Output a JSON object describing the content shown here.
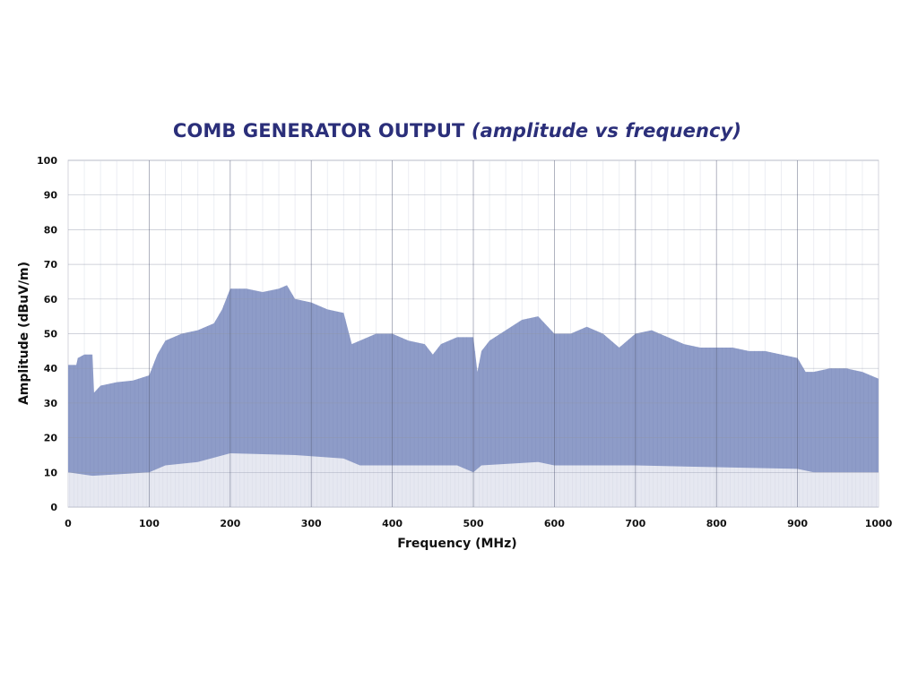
{
  "chart_data": {
    "type": "area",
    "title": "COMB GENERATOR OUTPUT",
    "subtitle": "(amplitude vs frequency)",
    "xlabel": "Frequency (MHz)",
    "ylabel": "Amplitude (dBuV/m)",
    "xlim": [
      0,
      1000
    ],
    "ylim": [
      0,
      100
    ],
    "x_ticks": [
      "0",
      "100",
      "200",
      "300",
      "400",
      "500",
      "600",
      "700",
      "800",
      "900",
      "1000"
    ],
    "y_ticks": [
      "0",
      "10",
      "20",
      "30",
      "40",
      "50",
      "60",
      "70",
      "80",
      "90",
      "100"
    ],
    "grid": true,
    "legend": "none",
    "series": [
      {
        "color": "#8e9cc8",
        "x": [
          0,
          10,
          12,
          20,
          30,
          32,
          40,
          60,
          80,
          100,
          110,
          120,
          140,
          160,
          180,
          190,
          200,
          220,
          240,
          260,
          270,
          280,
          300,
          320,
          340,
          350,
          360,
          380,
          400,
          420,
          440,
          450,
          460,
          480,
          500,
          505,
          510,
          520,
          540,
          560,
          580,
          600,
          620,
          640,
          660,
          680,
          690,
          700,
          720,
          740,
          760,
          780,
          800,
          820,
          840,
          860,
          880,
          900,
          910,
          920,
          940,
          960,
          980,
          1000
        ],
        "values": [
          41,
          41,
          43,
          44,
          44,
          33,
          35,
          36,
          36.5,
          38,
          44,
          48,
          50,
          51,
          53,
          57,
          63,
          63,
          62,
          63,
          64,
          60,
          59,
          57,
          56,
          47,
          48,
          50,
          50,
          48,
          47,
          44,
          47,
          49,
          49,
          39,
          45,
          48,
          51,
          54,
          55,
          50,
          50,
          52,
          50,
          46,
          48,
          50,
          51,
          49,
          47,
          46,
          46,
          46,
          45,
          45,
          44,
          43,
          39,
          39,
          40,
          40,
          39,
          37
        ]
      },
      {
        "color": "#e6e8f1",
        "x": [
          0,
          30,
          100,
          120,
          160,
          200,
          280,
          340,
          360,
          400,
          480,
          500,
          510,
          580,
          600,
          700,
          900,
          920,
          1000
        ],
        "values": [
          10,
          9,
          10,
          12,
          13,
          15.5,
          15,
          14,
          12,
          12,
          12,
          10,
          12,
          13,
          12,
          12,
          11,
          10,
          10
        ]
      }
    ]
  }
}
